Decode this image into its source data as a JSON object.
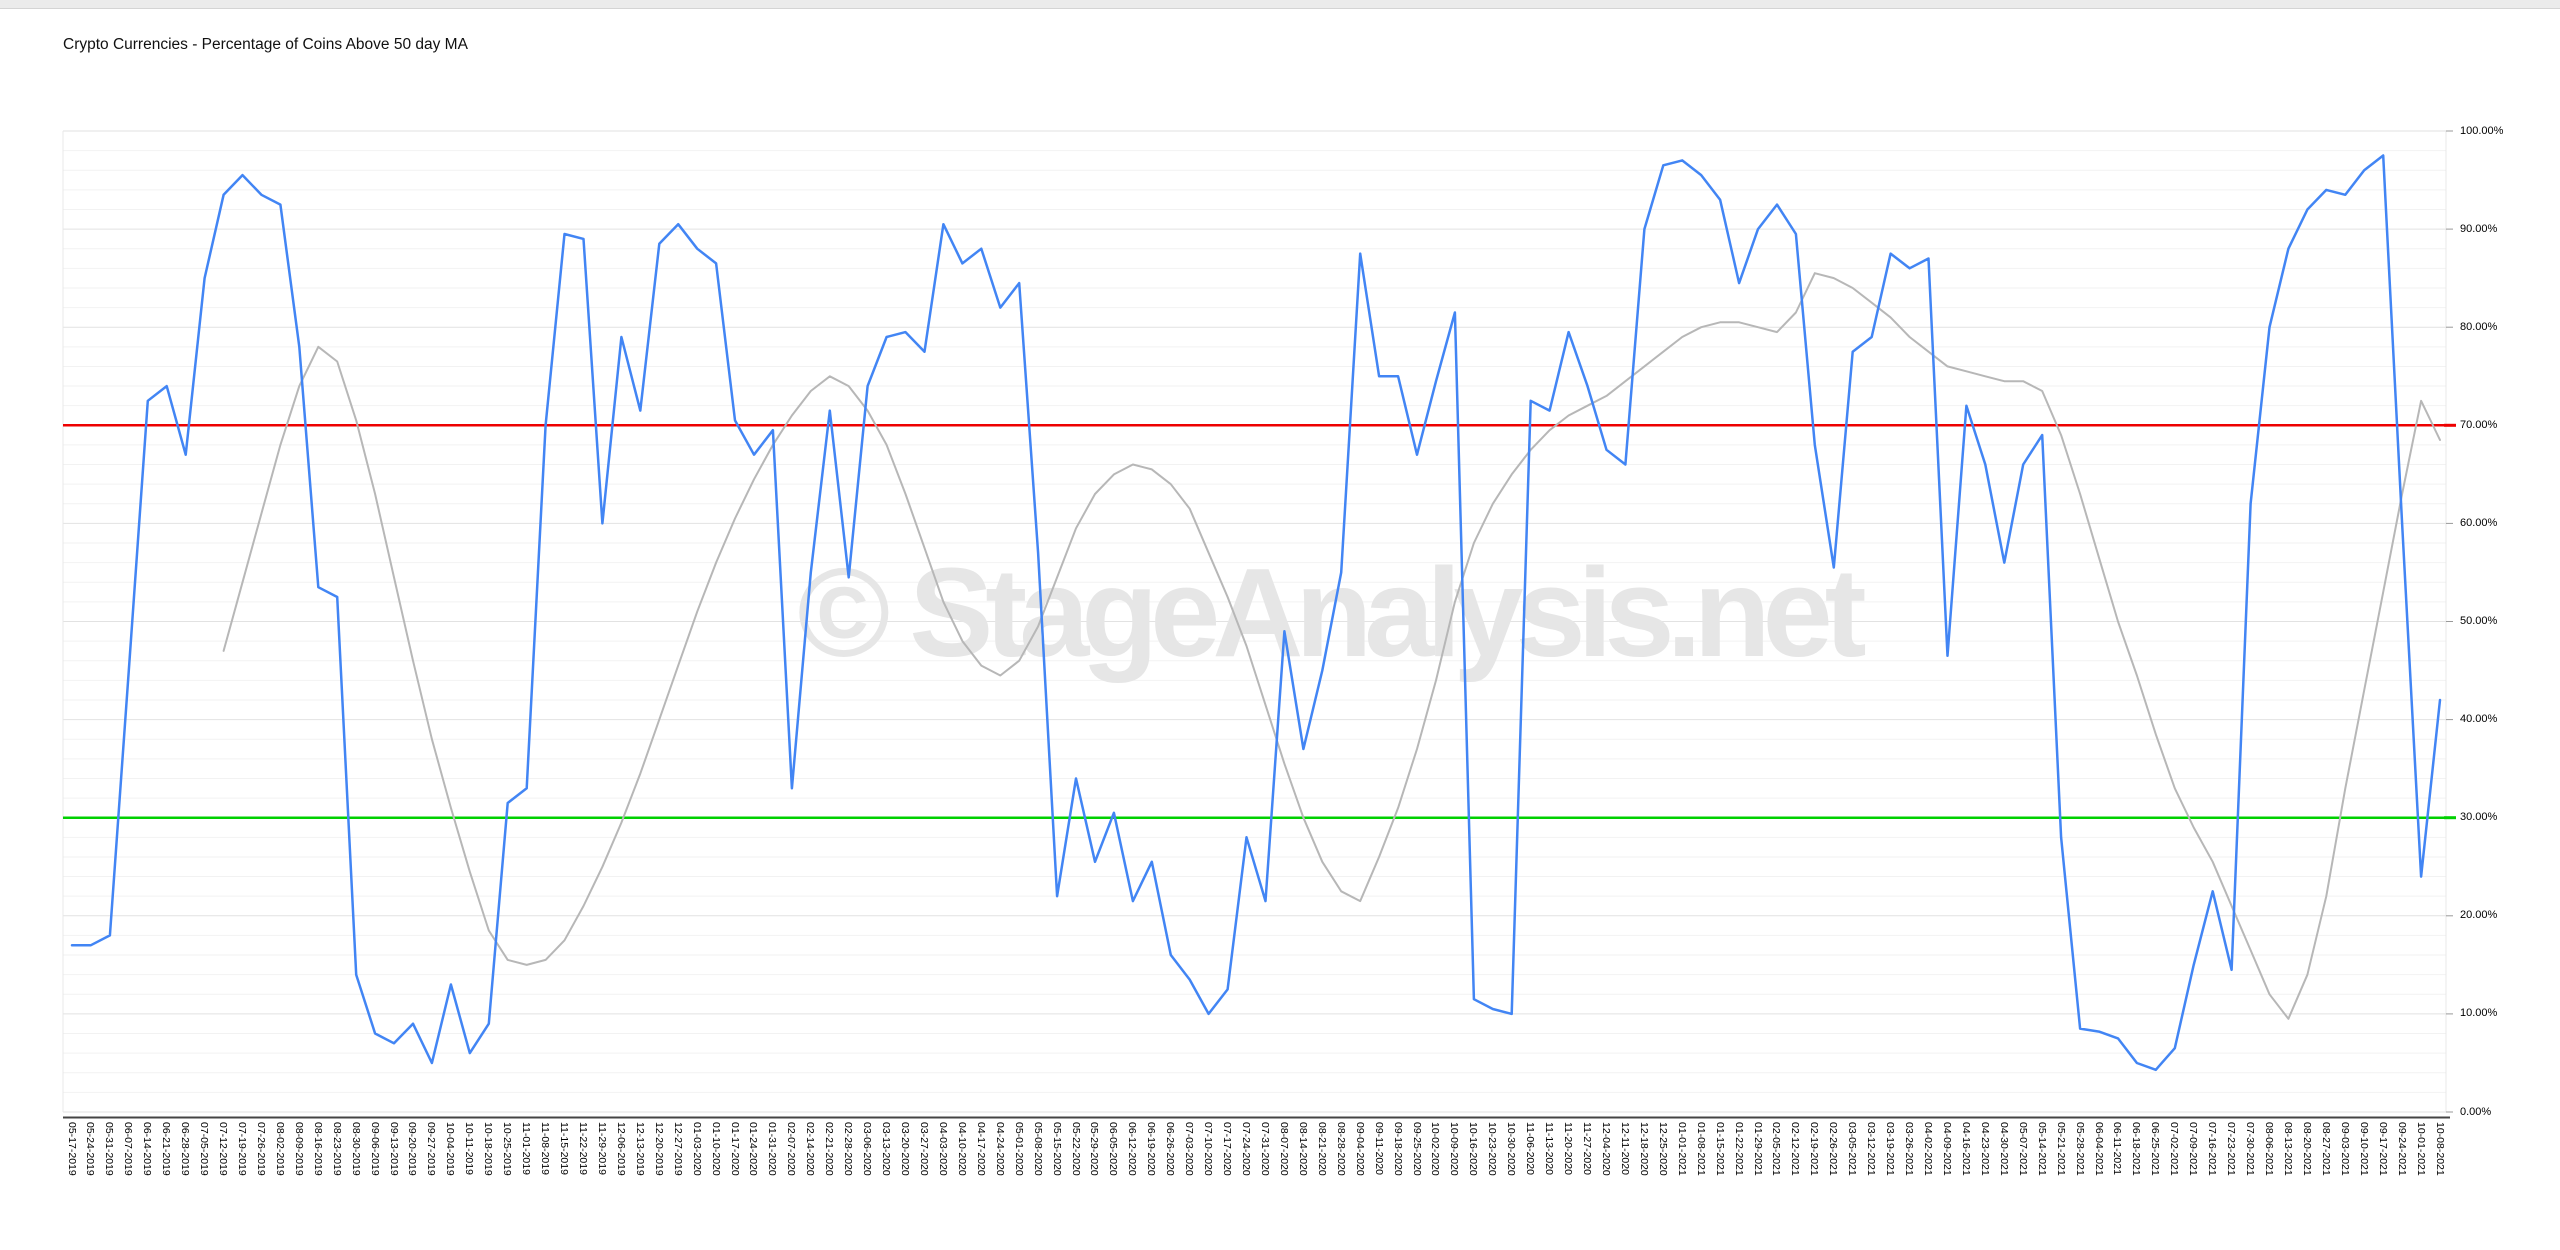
{
  "title": "Crypto Currencies - Percentage of Coins Above 50 day MA",
  "watermark": "© StageAnalysis.net",
  "chart_data": {
    "type": "line",
    "title": "Crypto Currencies - Percentage of Coins Above 50 day MA",
    "xlabel": "",
    "ylabel": "",
    "ylim": [
      0,
      100
    ],
    "y_major": 10,
    "y_minor": 2,
    "grid": "horizontal",
    "legend_position": "none",
    "yticklabels": [
      "0.00%",
      "10.00%",
      "20.00%",
      "30.00%",
      "40.00%",
      "50.00%",
      "60.00%",
      "70.00%",
      "80.00%",
      "90.00%",
      "100.00%"
    ],
    "thresholds": [
      {
        "value": 70,
        "color": "#ee0000"
      },
      {
        "value": 30,
        "color": "#00d000"
      }
    ],
    "x": [
      "05-17-2019",
      "05-24-2019",
      "05-31-2019",
      "06-07-2019",
      "06-14-2019",
      "06-21-2019",
      "06-28-2019",
      "07-05-2019",
      "07-12-2019",
      "07-19-2019",
      "07-26-2019",
      "08-02-2019",
      "08-09-2019",
      "08-16-2019",
      "08-23-2019",
      "08-30-2019",
      "09-06-2019",
      "09-13-2019",
      "09-20-2019",
      "09-27-2019",
      "10-04-2019",
      "10-11-2019",
      "10-18-2019",
      "10-25-2019",
      "11-01-2019",
      "11-08-2019",
      "11-15-2019",
      "11-22-2019",
      "11-29-2019",
      "12-06-2019",
      "12-13-2019",
      "12-20-2019",
      "12-27-2019",
      "01-03-2020",
      "01-10-2020",
      "01-17-2020",
      "01-24-2020",
      "01-31-2020",
      "02-07-2020",
      "02-14-2020",
      "02-21-2020",
      "02-28-2020",
      "03-06-2020",
      "03-13-2020",
      "03-20-2020",
      "03-27-2020",
      "04-03-2020",
      "04-10-2020",
      "04-17-2020",
      "04-24-2020",
      "05-01-2020",
      "05-08-2020",
      "05-15-2020",
      "05-22-2020",
      "05-29-2020",
      "06-05-2020",
      "06-12-2020",
      "06-19-2020",
      "06-26-2020",
      "07-03-2020",
      "07-10-2020",
      "07-17-2020",
      "07-24-2020",
      "07-31-2020",
      "08-07-2020",
      "08-14-2020",
      "08-21-2020",
      "08-28-2020",
      "09-04-2020",
      "09-11-2020",
      "09-18-2020",
      "09-25-2020",
      "10-02-2020",
      "10-09-2020",
      "10-16-2020",
      "10-23-2020",
      "10-30-2020",
      "11-06-2020",
      "11-13-2020",
      "11-20-2020",
      "11-27-2020",
      "12-04-2020",
      "12-11-2020",
      "12-18-2020",
      "12-25-2020",
      "01-01-2021",
      "01-08-2021",
      "01-15-2021",
      "01-22-2021",
      "01-29-2021",
      "02-05-2021",
      "02-12-2021",
      "02-19-2021",
      "02-26-2021",
      "03-05-2021",
      "03-12-2021",
      "03-19-2021",
      "03-26-2021",
      "04-02-2021",
      "04-09-2021",
      "04-16-2021",
      "04-23-2021",
      "04-30-2021",
      "05-07-2021",
      "05-14-2021",
      "05-21-2021",
      "05-28-2021",
      "06-04-2021",
      "06-11-2021",
      "06-18-2021",
      "06-25-2021",
      "07-02-2021",
      "07-09-2021",
      "07-16-2021",
      "07-23-2021",
      "07-30-2021",
      "08-06-2021",
      "08-13-2021",
      "08-20-2021",
      "08-27-2021",
      "09-03-2021",
      "09-10-2021",
      "09-17-2021",
      "09-24-2021",
      "10-01-2021",
      "10-08-2021"
    ],
    "series": [
      {
        "name": "pct-above-50day-ma",
        "color": "#4285f4",
        "width": 2.5,
        "values": [
          17,
          17,
          18,
          45,
          72.5,
          74,
          67,
          85,
          93.5,
          95.5,
          93.5,
          92.5,
          78,
          53.5,
          52.5,
          14,
          8,
          7,
          9,
          5,
          13,
          6,
          9,
          31.5,
          33,
          70,
          89.5,
          89,
          60,
          79,
          71.5,
          88.5,
          90.5,
          88,
          86.5,
          70.5,
          67,
          69.5,
          33,
          55,
          71.5,
          54.5,
          74,
          79,
          79.5,
          77.5,
          90.5,
          86.5,
          88,
          82,
          84.5,
          57,
          22,
          34,
          25.5,
          30.5,
          21.5,
          25.5,
          16,
          13.5,
          10,
          12.5,
          28,
          21.5,
          49,
          37,
          45,
          55,
          87.5,
          75,
          75,
          67,
          74.5,
          81.5,
          11.5,
          10.5,
          10,
          72.5,
          71.5,
          79.5,
          74,
          67.5,
          66,
          90,
          96.5,
          97,
          95.5,
          93,
          84.5,
          90,
          92.5,
          89.5,
          68,
          55.5,
          77.5,
          79,
          87.5,
          86,
          87,
          46.5,
          72,
          66,
          56,
          66,
          69,
          28,
          8.5,
          8.2,
          7.5,
          5,
          4.3,
          6.5,
          15,
          22.5,
          14.5,
          62,
          80,
          88,
          92,
          94,
          93.5,
          96,
          97.5,
          60,
          24,
          42
        ]
      },
      {
        "name": "smoothed-average",
        "color": "#b7b7b7",
        "width": 2,
        "values": [
          null,
          null,
          null,
          null,
          null,
          null,
          null,
          null,
          47,
          54,
          61,
          68,
          74,
          78,
          76.5,
          70.5,
          63,
          54.5,
          46,
          38,
          31,
          24.5,
          18.5,
          15.5,
          15,
          15.5,
          17.5,
          21,
          25,
          29.5,
          34.5,
          40,
          45.5,
          51,
          56,
          60.5,
          64.5,
          68,
          71,
          73.5,
          75,
          74,
          71.5,
          68,
          63,
          57.5,
          52,
          48,
          45.5,
          44.5,
          46,
          49.5,
          54.5,
          59.5,
          63,
          65,
          66,
          65.5,
          64,
          61.5,
          57,
          52.5,
          47.5,
          41.5,
          35.5,
          30,
          25.5,
          22.5,
          21.5,
          26,
          31,
          37,
          44,
          52,
          58,
          62,
          65,
          67.5,
          69.5,
          71,
          72,
          73,
          74.5,
          76,
          77.5,
          79,
          80,
          80.5,
          80.5,
          80,
          79.5,
          81.5,
          85.5,
          85,
          84,
          82.5,
          81,
          79,
          77.5,
          76,
          75.5,
          75,
          74.5,
          74.5,
          73.5,
          69,
          63,
          56.5,
          50,
          44.5,
          38.5,
          33,
          29,
          25.5,
          21,
          16.5,
          12,
          9.5,
          14,
          22,
          33,
          43,
          53,
          63,
          72.5,
          68.5
        ]
      }
    ]
  }
}
